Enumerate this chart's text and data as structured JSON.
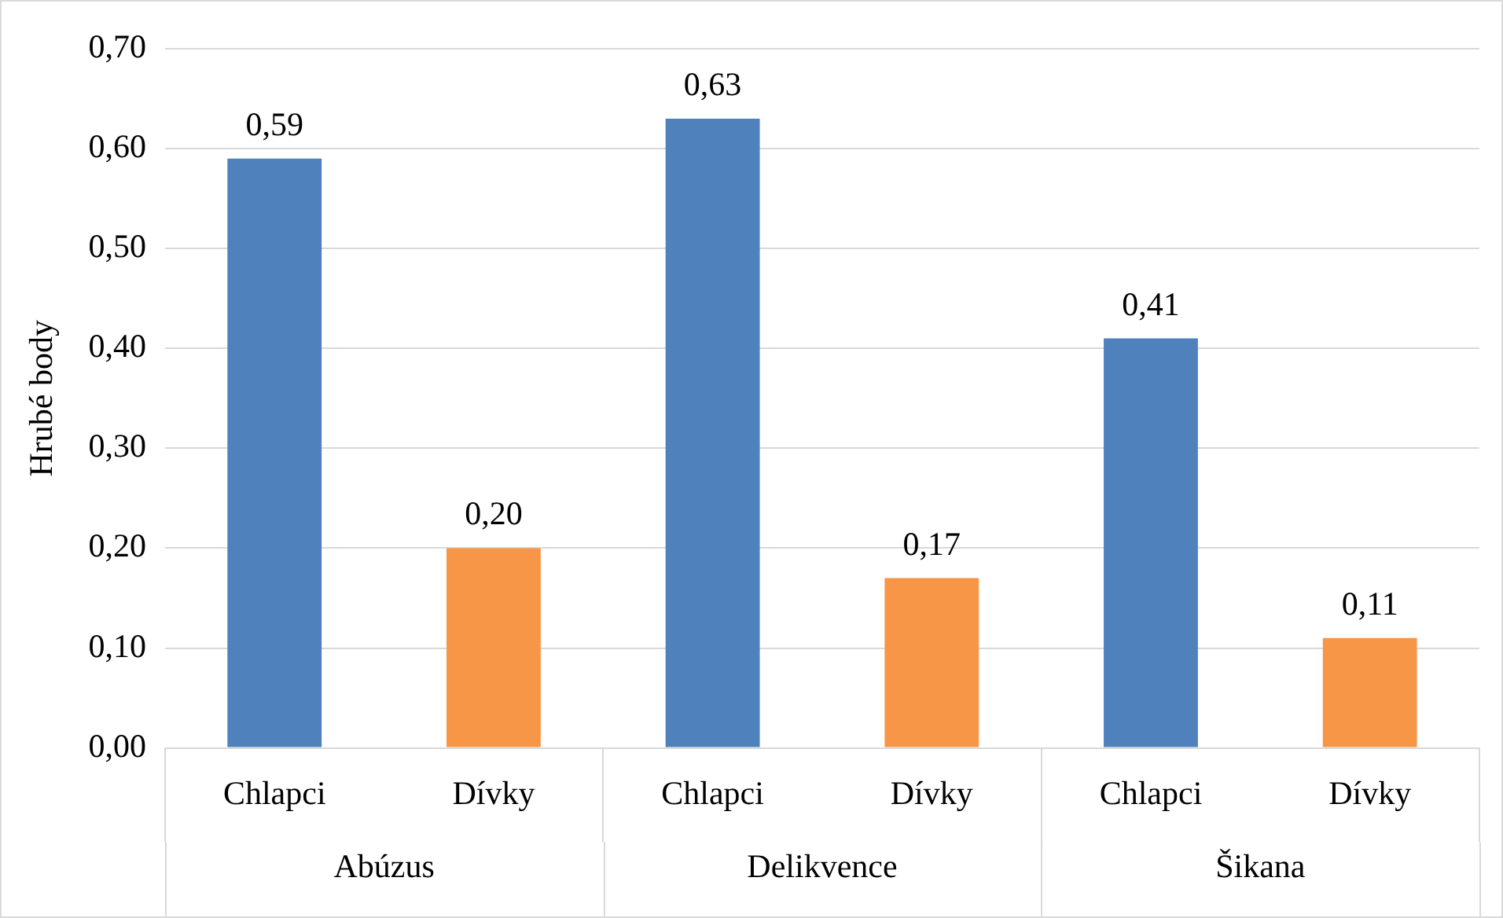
{
  "chart_data": {
    "type": "bar",
    "ylabel": "Hrubé body",
    "categories": [
      "Abúzus",
      "Delikvence",
      "Šikana"
    ],
    "series": [
      {
        "name": "Chlapci",
        "color": "#4f81bd",
        "values": [
          0.59,
          0.63,
          0.41
        ],
        "value_labels": [
          "0,59",
          "0,63",
          "0,41"
        ]
      },
      {
        "name": "Dívky",
        "color": "#f79646",
        "values": [
          0.2,
          0.17,
          0.11
        ],
        "value_labels": [
          "0,20",
          "0,17",
          "0,11"
        ]
      }
    ],
    "ylim": [
      0,
      0.7
    ],
    "yticks": [
      {
        "value": 0,
        "label": "0,00"
      },
      {
        "value": 0.1,
        "label": "0,10"
      },
      {
        "value": 0.2,
        "label": "0,20"
      },
      {
        "value": 0.3,
        "label": "0,30"
      },
      {
        "value": 0.4,
        "label": "0,40"
      },
      {
        "value": 0.5,
        "label": "0,50"
      },
      {
        "value": 0.6,
        "label": "0,60"
      },
      {
        "value": 0.7,
        "label": "0,70"
      }
    ],
    "grid": "y",
    "legend": false
  }
}
